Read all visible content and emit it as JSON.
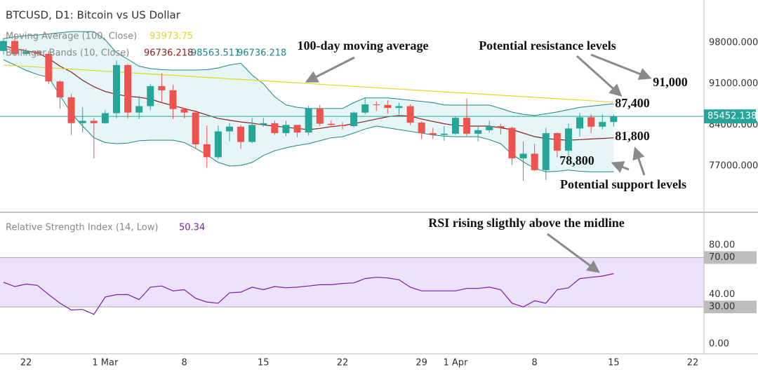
{
  "chart_data": [
    {
      "type": "candlestick",
      "title": "BTCUSD, D1: Bitcoin vs US Dollar",
      "x": [
        -9,
        -8,
        -7,
        -6,
        -5,
        -4,
        -3,
        -2,
        -1,
        0,
        1,
        2,
        3,
        4,
        5,
        6,
        7,
        8,
        9,
        10,
        11,
        12,
        13,
        14,
        15,
        16,
        17,
        18,
        19,
        20,
        21,
        22,
        23,
        24,
        25,
        26,
        27,
        28,
        29,
        30,
        31,
        32,
        33,
        34,
        35,
        36,
        37,
        38,
        39,
        40,
        41,
        42,
        43,
        44,
        45
      ],
      "open": [
        96600,
        98300,
        96100,
        96500,
        96100,
        91400,
        88700,
        84300,
        84700,
        84300,
        86000,
        94200,
        86100,
        87200,
        90600,
        89900,
        86700,
        86100,
        80700,
        78500,
        82900,
        83700,
        81100,
        84000,
        84300,
        82600,
        84000,
        82700,
        86800,
        84200,
        84000,
        83800,
        86100,
        87500,
        87400,
        86900,
        87200,
        84400,
        82600,
        82300,
        82500,
        85200,
        82500,
        83100,
        83800,
        83500,
        78300,
        79100,
        76300,
        82600,
        79600,
        83400,
        85300,
        83700,
        84500
      ],
      "high": [
        98800,
        99500,
        97000,
        96800,
        96600,
        91600,
        89300,
        87000,
        85100,
        86500,
        95000,
        94400,
        88900,
        91000,
        92800,
        90800,
        86900,
        86500,
        83900,
        83900,
        84300,
        84000,
        85200,
        85200,
        84700,
        84700,
        84000,
        87300,
        87400,
        84800,
        84500,
        86300,
        88500,
        88000,
        88200,
        87800,
        87500,
        84600,
        83500,
        83800,
        85500,
        88500,
        83900,
        84700,
        84200,
        83700,
        81200,
        80800,
        83500,
        82700,
        84200,
        86000,
        85800,
        85800,
        85800
      ],
      "low": [
        96000,
        95800,
        95800,
        95700,
        91000,
        86800,
        82300,
        82700,
        78300,
        84200,
        85100,
        85100,
        85000,
        86500,
        87800,
        85000,
        85100,
        80000,
        76700,
        78200,
        81200,
        79900,
        80900,
        83700,
        82300,
        82100,
        81900,
        82200,
        83800,
        83600,
        83200,
        83600,
        85800,
        86400,
        85900,
        85800,
        84000,
        81600,
        81600,
        81300,
        82300,
        82100,
        81200,
        82700,
        82400,
        77200,
        74500,
        76100,
        74600,
        78500,
        78600,
        82000,
        82600,
        83200,
        83700
      ],
      "close": [
        98300,
        96100,
        96500,
        96100,
        91400,
        88700,
        84300,
        84700,
        84300,
        86000,
        94200,
        86100,
        87200,
        90600,
        89900,
        86700,
        86100,
        80700,
        78500,
        82900,
        83700,
        81100,
        84000,
        84300,
        82600,
        84000,
        82700,
        86800,
        84200,
        84000,
        83800,
        86100,
        87500,
        87400,
        86900,
        87200,
        84400,
        82600,
        82300,
        82500,
        85200,
        82500,
        83100,
        83800,
        83500,
        78300,
        79100,
        76300,
        82600,
        79600,
        83400,
        85300,
        83700,
        84500,
        85452.138
      ],
      "up_color": "#26a69a",
      "down_color": "#ef5350",
      "moving_average": {
        "name": "Moving Average (100, Close)",
        "color": "#e3d52a",
        "legend_values": [
          "93973.75"
        ],
        "values": [
          94200,
          94083,
          93966,
          93849,
          93732,
          93615,
          93498,
          93381,
          93264,
          93147,
          93030,
          92913,
          92796,
          92679,
          92562,
          92445,
          92328,
          92211,
          92094,
          91977,
          91860,
          91743,
          91626,
          91509,
          91392,
          91275,
          91158,
          91041,
          90924,
          90807,
          90690,
          90573,
          90456,
          90339,
          90222,
          90105,
          89988,
          89871,
          89754,
          89637,
          89520,
          89403,
          89286,
          89169,
          89052,
          88935,
          88818,
          88701,
          88584,
          88467,
          88350,
          88233,
          88116,
          87999,
          87882
        ]
      },
      "bollinger": {
        "name": "Bollinger Bands (10, Close)",
        "legend_values": [
          "96736.218",
          "98563.511",
          "96736.218"
        ],
        "fill": "#e6f6f6",
        "basis": {
          "color": "#8b1e1e",
          "values": [
            97500,
            97000,
            96600,
            96300,
            95300,
            94000,
            93000,
            91600,
            90500,
            89700,
            89200,
            88900,
            88700,
            88400,
            87800,
            87300,
            86800,
            86300,
            85700,
            85100,
            84800,
            84500,
            84300,
            84000,
            83800,
            83600,
            83400,
            83200,
            83400,
            83700,
            83900,
            84200,
            84600,
            85000,
            85400,
            85600,
            85500,
            85000,
            84600,
            84200,
            83900,
            83800,
            83800,
            83800,
            83500,
            83200,
            82600,
            82000,
            81700,
            81500,
            81400,
            81500,
            81600,
            81700,
            81800
          ]
        },
        "upper": {
          "color": "#1e8585",
          "values": [
            98700,
            99000,
            99200,
            99300,
            99500,
            99700,
            99900,
            99900,
            99900,
            98500,
            96300,
            95200,
            94000,
            93600,
            93400,
            93350,
            93350,
            93350,
            93400,
            93700,
            94200,
            94500,
            92500,
            91000,
            88800,
            87400,
            87000,
            86800,
            86800,
            86800,
            86800,
            87800,
            88600,
            88600,
            88600,
            88400,
            88200,
            88000,
            87800,
            87400,
            87380,
            87380,
            87380,
            87380,
            86800,
            86190,
            85800,
            85600,
            85900,
            86200,
            86600,
            87000,
            87200,
            87400,
            87600
          ]
        },
        "lower": {
          "color": "#1e8585",
          "values": [
            95100,
            94200,
            93300,
            92600,
            92100,
            89000,
            86000,
            83800,
            81800,
            81000,
            80800,
            80900,
            81300,
            81400,
            81400,
            81400,
            81000,
            80000,
            78900,
            77600,
            77000,
            77100,
            77600,
            78800,
            79600,
            80100,
            80500,
            80800,
            81300,
            81800,
            82000,
            82600,
            83300,
            83800,
            83500,
            83200,
            82900,
            82600,
            82300,
            82100,
            82000,
            82000,
            82000,
            81500,
            80800,
            79000,
            77700,
            76600,
            76000,
            76100,
            76300,
            76100,
            76000,
            76000,
            76000
          ]
        }
      },
      "last_price": {
        "value": 85452.138,
        "label": "85452.138"
      },
      "last_price_color": "#26a69a",
      "xlim": [
        -9.31,
        52.99
      ],
      "ylim": [
        69120,
        105280
      ],
      "yticks": [
        {
          "value": 77000,
          "label": "77000.000"
        },
        {
          "value": 84000,
          "label": "84000.000"
        },
        {
          "value": 91000,
          "label": "91000.000"
        },
        {
          "value": 98000,
          "label": "98000.000"
        }
      ],
      "annotations": [
        "100-day moving average",
        "Potential resistance levels",
        "91,000",
        "87,400",
        "81,800",
        "78,800",
        "Potential support levels"
      ]
    },
    {
      "type": "line",
      "title": "Relative Strength Index (14, Low)",
      "x": [
        -9,
        -8,
        -7,
        -6,
        -5,
        -4,
        -3,
        -2,
        -1,
        0,
        1,
        2,
        3,
        4,
        5,
        6,
        7,
        8,
        9,
        10,
        11,
        12,
        13,
        14,
        15,
        16,
        17,
        18,
        19,
        20,
        21,
        22,
        23,
        24,
        25,
        26,
        27,
        28,
        29,
        30,
        31,
        32,
        33,
        34,
        35,
        36,
        37,
        38,
        39,
        40,
        41,
        42,
        43,
        44,
        45
      ],
      "series": [
        {
          "name": "Relative Strength Index (14, Low)",
          "color": "#7b1fa2",
          "legend_values": [
            "50.34"
          ],
          "values": [
            50,
            46.5,
            48.5,
            47.5,
            40,
            33,
            27.5,
            28,
            24,
            38,
            40,
            40,
            36,
            46,
            47,
            43,
            44,
            37,
            34,
            33,
            41.5,
            42,
            46,
            44,
            46.5,
            45.5,
            46,
            47,
            48,
            48,
            49,
            49.5,
            53,
            54,
            53.5,
            52,
            46,
            43,
            43,
            43,
            43,
            45,
            45,
            46,
            44,
            33,
            30,
            35,
            33,
            44,
            45.5,
            53,
            54,
            55,
            57
          ]
        }
      ],
      "bands": {
        "upper": {
          "value": 70,
          "label": "70.00"
        },
        "lower": {
          "value": 30,
          "label": "30.00"
        },
        "fill": "#ede2fb",
        "box_color": "#bdbdbd"
      },
      "xlim": [
        -9.31,
        52.99
      ],
      "ylim": [
        -7.94,
        106.67
      ],
      "yticks": [
        {
          "value": 0,
          "label": "0.00"
        },
        {
          "value": 40,
          "label": "40.00"
        },
        {
          "value": 80,
          "label": "80.00"
        }
      ],
      "xticks": [
        {
          "value": -7,
          "label": "22"
        },
        {
          "value": 0,
          "label": "1 Mar"
        },
        {
          "value": 7,
          "label": "8"
        },
        {
          "value": 14,
          "label": "15"
        },
        {
          "value": 21,
          "label": "22"
        },
        {
          "value": 28,
          "label": "29"
        },
        {
          "value": 31,
          "label": "1 Apr"
        },
        {
          "value": 38,
          "label": "8"
        },
        {
          "value": 45,
          "label": "15"
        },
        {
          "value": 52,
          "label": "22"
        }
      ],
      "annotations": [
        "RSI rising sligthly above the midline"
      ]
    }
  ]
}
